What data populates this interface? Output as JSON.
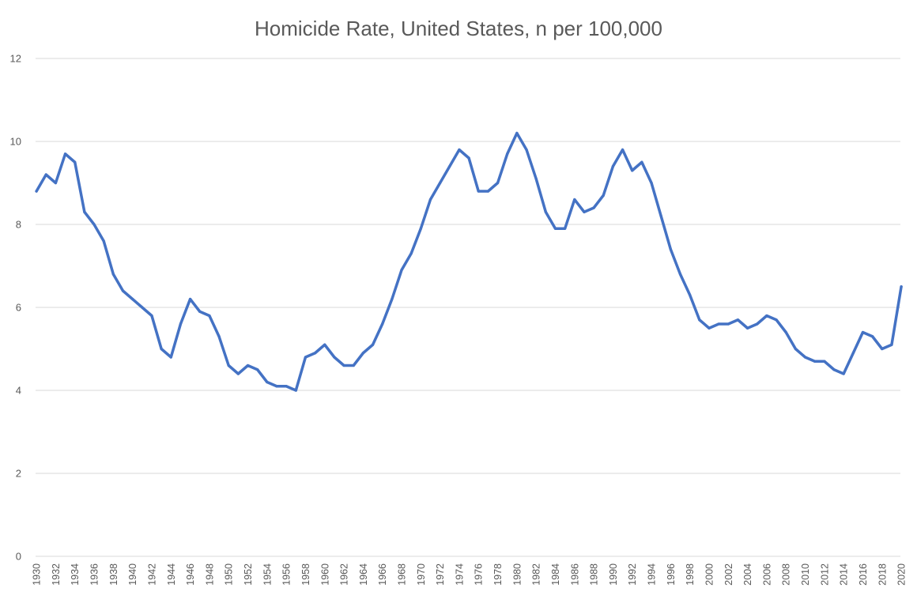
{
  "chart_data": {
    "type": "line",
    "title": "Homicide Rate, United States, n per 100,000",
    "xlabel": "",
    "ylabel": "",
    "ylim": [
      0,
      12
    ],
    "yticks": [
      0,
      2,
      4,
      6,
      8,
      10,
      12
    ],
    "grid": true,
    "legend": "none",
    "line_color": "#4472C4",
    "x": [
      1930,
      1931,
      1932,
      1933,
      1934,
      1935,
      1936,
      1937,
      1938,
      1939,
      1940,
      1941,
      1942,
      1943,
      1944,
      1945,
      1946,
      1947,
      1948,
      1949,
      1950,
      1951,
      1952,
      1953,
      1954,
      1955,
      1956,
      1957,
      1958,
      1959,
      1960,
      1961,
      1962,
      1963,
      1964,
      1965,
      1966,
      1967,
      1968,
      1969,
      1970,
      1971,
      1972,
      1973,
      1974,
      1975,
      1976,
      1977,
      1978,
      1979,
      1980,
      1981,
      1982,
      1983,
      1984,
      1985,
      1986,
      1987,
      1988,
      1989,
      1990,
      1991,
      1992,
      1993,
      1994,
      1995,
      1996,
      1997,
      1998,
      1999,
      2000,
      2001,
      2002,
      2003,
      2004,
      2005,
      2006,
      2007,
      2008,
      2009,
      2010,
      2011,
      2012,
      2013,
      2014,
      2015,
      2016,
      2017,
      2018,
      2019,
      2020
    ],
    "xtick_labels": [
      "1930",
      "1932",
      "1934",
      "1936",
      "1938",
      "1940",
      "1942",
      "1944",
      "1946",
      "1948",
      "1950",
      "1952",
      "1954",
      "1956",
      "1958",
      "1960",
      "1962",
      "1964",
      "1966",
      "1968",
      "1970",
      "1972",
      "1974",
      "1976",
      "1978",
      "1980",
      "1982",
      "1984",
      "1986",
      "1988",
      "1990",
      "1992",
      "1994",
      "1996",
      "1998",
      "2000",
      "2002",
      "2004",
      "2006",
      "2008",
      "2010",
      "2012",
      "2014",
      "2016",
      "2018",
      "2020"
    ],
    "series": [
      {
        "values": [
          8.8,
          9.2,
          9.0,
          9.7,
          9.5,
          8.3,
          8.0,
          7.6,
          6.8,
          6.4,
          6.2,
          6.0,
          5.8,
          5.0,
          4.8,
          5.6,
          6.2,
          5.9,
          5.8,
          5.3,
          4.6,
          4.4,
          4.6,
          4.5,
          4.2,
          4.1,
          4.1,
          4.0,
          4.8,
          4.9,
          5.1,
          4.8,
          4.6,
          4.6,
          4.9,
          5.1,
          5.6,
          6.2,
          6.9,
          7.3,
          7.9,
          8.6,
          9.0,
          9.4,
          9.8,
          9.6,
          8.8,
          8.8,
          9.0,
          9.7,
          10.2,
          9.8,
          9.1,
          8.3,
          7.9,
          7.9,
          8.6,
          8.3,
          8.4,
          8.7,
          9.4,
          9.8,
          9.3,
          9.5,
          9.0,
          8.2,
          7.4,
          6.8,
          6.3,
          5.7,
          5.5,
          5.6,
          5.6,
          5.7,
          5.5,
          5.6,
          5.8,
          5.7,
          5.4,
          5.0,
          4.8,
          4.7,
          4.7,
          4.5,
          4.4,
          4.9,
          5.4,
          5.3,
          5.0,
          5.1,
          6.5
        ]
      }
    ]
  }
}
